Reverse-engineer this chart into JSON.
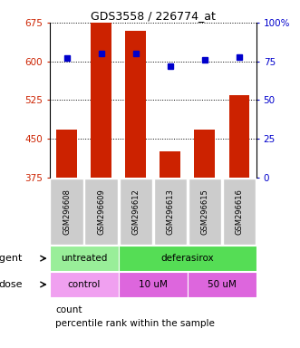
{
  "title": "GDS3558 / 226774_at",
  "samples": [
    "GSM296608",
    "GSM296609",
    "GSM296612",
    "GSM296613",
    "GSM296615",
    "GSM296616"
  ],
  "bar_values": [
    468,
    675,
    660,
    425,
    468,
    535
  ],
  "percentile_values": [
    77,
    80,
    80,
    72,
    76,
    78
  ],
  "bar_color": "#cc2200",
  "marker_color": "#0000cc",
  "ylim_left": [
    375,
    675
  ],
  "ylim_right": [
    0,
    100
  ],
  "yticks_left": [
    375,
    450,
    525,
    600,
    675
  ],
  "yticks_right": [
    0,
    25,
    50,
    75,
    100
  ],
  "agent_spans": [
    {
      "start": 0,
      "end": 2,
      "label": "untreated",
      "color": "#99ee99"
    },
    {
      "start": 2,
      "end": 6,
      "label": "deferasirox",
      "color": "#55dd55"
    }
  ],
  "dose_spans": [
    {
      "start": 0,
      "end": 2,
      "label": "control",
      "color": "#f0a0f0"
    },
    {
      "start": 2,
      "end": 4,
      "label": "10 uM",
      "color": "#dd66dd"
    },
    {
      "start": 4,
      "end": 6,
      "label": "50 uM",
      "color": "#dd66dd"
    }
  ],
  "sample_box_color": "#cccccc",
  "background_color": "#ffffff"
}
